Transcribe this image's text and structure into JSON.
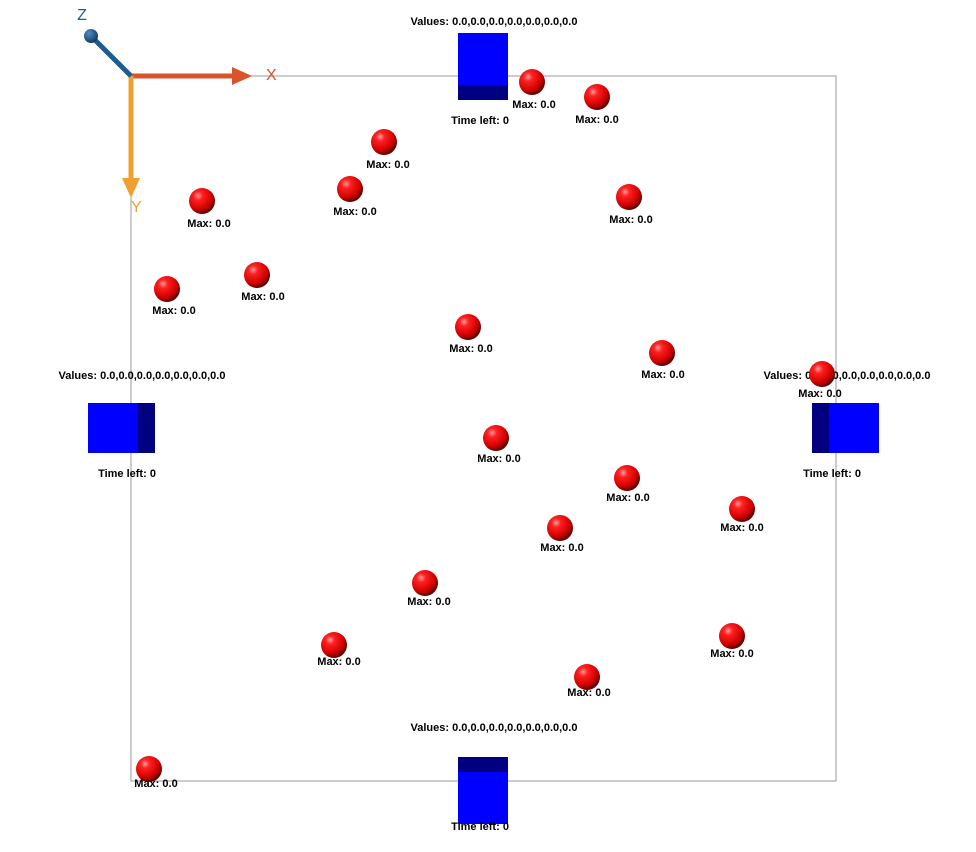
{
  "axes": {
    "x_label": "X",
    "y_label": "Y",
    "z_label": "Z",
    "x_color": "#d9532b",
    "y_color": "#f0a030",
    "z_color": "#1f5c8f"
  },
  "colors": {
    "boundary": "#999999",
    "sphere": "#ff0000",
    "cube_front": "#0000ff",
    "cube_side": "#000080"
  },
  "stations": [
    {
      "id": "top",
      "values_label": "Values: 0.0,0.0,0.0,0.0,0.0,0.0,0.0",
      "time_label": "Time left: 0"
    },
    {
      "id": "left",
      "values_label": "Values: 0.0,0.0,0.0,0.0,0.0,0.0,0.0",
      "time_label": "Time left: 0"
    },
    {
      "id": "right",
      "values_label": "Values: 0.0,0.0,0.0,0.0,0.0,0.0,0.0",
      "time_label": "Time left: 0"
    },
    {
      "id": "bottom",
      "values_label": "Values: 0.0,0.0,0.0,0.0,0.0,0.0,0.0",
      "time_label": "Time left: 0"
    }
  ],
  "agents": [
    {
      "label": "Max: 0.0"
    },
    {
      "label": "Max: 0.0"
    },
    {
      "label": "Max: 0.0"
    },
    {
      "label": "Max: 0.0"
    },
    {
      "label": "Max: 0.0"
    },
    {
      "label": "Max: 0.0"
    },
    {
      "label": "Max: 0.0"
    },
    {
      "label": "Max: 0.0"
    },
    {
      "label": "Max: 0.0"
    },
    {
      "label": "Max: 0.0"
    },
    {
      "label": "Max: 0.0"
    },
    {
      "label": "Max: 0.0"
    },
    {
      "label": "Max: 0.0"
    },
    {
      "label": "Max: 0.0"
    },
    {
      "label": "Max: 0.0"
    },
    {
      "label": "Max: 0.0"
    },
    {
      "label": "Max: 0.0"
    },
    {
      "label": "Max: 0.0"
    },
    {
      "label": "Max: 0.0"
    },
    {
      "label": "Max: 0.0"
    },
    {
      "label": "Max: 0.0"
    },
    {
      "label": "Max: 0.0"
    }
  ]
}
